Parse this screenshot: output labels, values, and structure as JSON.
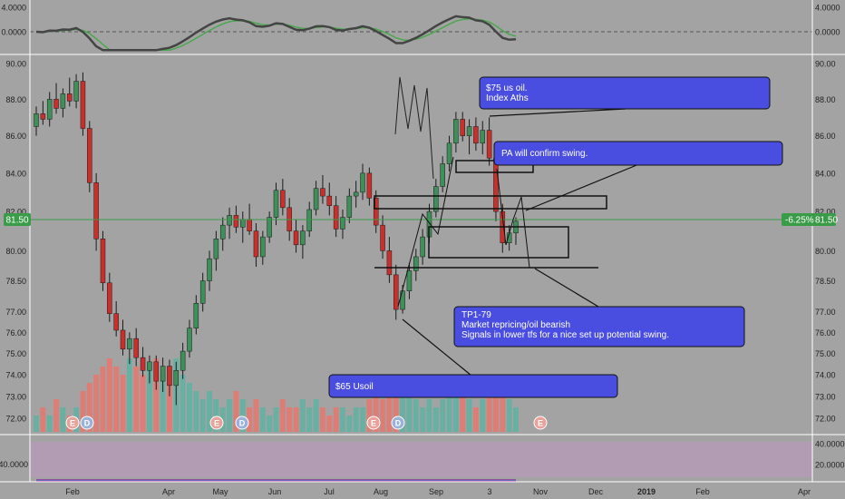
{
  "chart_data": {
    "type": "candlestick",
    "instrument_last_price": "81.50",
    "price_change_badge": "-6.25%",
    "price_axis": {
      "ticks": [
        "90.00",
        "88.00",
        "86.00",
        "84.00",
        "82.00",
        "80.00",
        "78.50",
        "77.00",
        "76.00",
        "75.00",
        "74.00",
        "73.00",
        "72.00"
      ],
      "values": [
        90,
        88,
        86,
        84,
        82,
        80,
        78.5,
        77,
        76,
        75,
        74,
        73,
        72
      ],
      "log_scale": true
    },
    "time_axis": {
      "labels": [
        "Feb",
        "Apr",
        "May",
        "Jun",
        "Jul",
        "Aug",
        "Sep",
        "3",
        "Nov",
        "Dec",
        "2019",
        "Feb",
        "Apr"
      ]
    },
    "top_oscillator": {
      "ticks": [
        "4.0000",
        "0.0000"
      ],
      "values": [
        4,
        0
      ],
      "ylim": [
        -3,
        5
      ]
    },
    "bottom_oscillator": {
      "ticks": [
        "40.0000",
        "20.0000"
      ],
      "left_label": "40.0000",
      "values": [
        40,
        20
      ],
      "ylim": [
        5,
        48
      ]
    },
    "event_markers": [
      "E",
      "D",
      "E",
      "D",
      "E",
      "D",
      "E"
    ],
    "candles": [
      {
        "o": 86.5,
        "h": 87.6,
        "l": 86.0,
        "c": 87.2
      },
      {
        "o": 87.2,
        "h": 87.9,
        "l": 86.6,
        "c": 86.9
      },
      {
        "o": 86.9,
        "h": 88.4,
        "l": 86.5,
        "c": 88.0
      },
      {
        "o": 88.0,
        "h": 88.9,
        "l": 87.2,
        "c": 87.5
      },
      {
        "o": 87.5,
        "h": 88.6,
        "l": 87.0,
        "c": 88.3
      },
      {
        "o": 88.3,
        "h": 89.2,
        "l": 87.6,
        "c": 87.9
      },
      {
        "o": 87.9,
        "h": 89.4,
        "l": 87.5,
        "c": 89.0
      },
      {
        "o": 89.0,
        "h": 89.5,
        "l": 86.0,
        "c": 86.4
      },
      {
        "o": 86.4,
        "h": 86.8,
        "l": 83.0,
        "c": 83.5
      },
      {
        "o": 83.5,
        "h": 84.0,
        "l": 80.0,
        "c": 80.6
      },
      {
        "o": 80.6,
        "h": 81.0,
        "l": 78.0,
        "c": 78.4
      },
      {
        "o": 78.4,
        "h": 78.9,
        "l": 76.5,
        "c": 76.9
      },
      {
        "o": 76.9,
        "h": 77.5,
        "l": 75.8,
        "c": 76.1
      },
      {
        "o": 76.1,
        "h": 76.6,
        "l": 74.9,
        "c": 75.2
      },
      {
        "o": 75.2,
        "h": 76.0,
        "l": 74.5,
        "c": 75.7
      },
      {
        "o": 75.7,
        "h": 76.2,
        "l": 74.4,
        "c": 74.8
      },
      {
        "o": 74.8,
        "h": 75.3,
        "l": 73.9,
        "c": 74.2
      },
      {
        "o": 74.2,
        "h": 74.9,
        "l": 73.6,
        "c": 74.6
      },
      {
        "o": 74.6,
        "h": 74.9,
        "l": 73.3,
        "c": 73.7
      },
      {
        "o": 73.7,
        "h": 74.8,
        "l": 73.2,
        "c": 74.4
      },
      {
        "o": 74.4,
        "h": 74.7,
        "l": 73.0,
        "c": 73.5
      },
      {
        "o": 73.5,
        "h": 74.6,
        "l": 72.6,
        "c": 74.2
      },
      {
        "o": 74.2,
        "h": 75.5,
        "l": 73.8,
        "c": 75.1
      },
      {
        "o": 75.1,
        "h": 76.6,
        "l": 74.8,
        "c": 76.2
      },
      {
        "o": 76.2,
        "h": 77.8,
        "l": 75.9,
        "c": 77.4
      },
      {
        "o": 77.4,
        "h": 78.9,
        "l": 77.0,
        "c": 78.5
      },
      {
        "o": 78.5,
        "h": 80.0,
        "l": 78.0,
        "c": 79.6
      },
      {
        "o": 79.6,
        "h": 81.0,
        "l": 79.0,
        "c": 80.6
      },
      {
        "o": 80.6,
        "h": 81.7,
        "l": 80.0,
        "c": 81.3
      },
      {
        "o": 81.3,
        "h": 82.2,
        "l": 80.6,
        "c": 81.8
      },
      {
        "o": 81.8,
        "h": 82.3,
        "l": 80.9,
        "c": 81.2
      },
      {
        "o": 81.2,
        "h": 82.0,
        "l": 80.4,
        "c": 81.6
      },
      {
        "o": 81.6,
        "h": 82.4,
        "l": 80.8,
        "c": 81.0
      },
      {
        "o": 81.0,
        "h": 81.4,
        "l": 79.2,
        "c": 79.7
      },
      {
        "o": 79.7,
        "h": 81.0,
        "l": 79.3,
        "c": 80.7
      },
      {
        "o": 80.7,
        "h": 82.0,
        "l": 80.4,
        "c": 81.7
      },
      {
        "o": 81.7,
        "h": 83.5,
        "l": 81.3,
        "c": 83.1
      },
      {
        "o": 83.1,
        "h": 83.7,
        "l": 81.8,
        "c": 82.2
      },
      {
        "o": 82.2,
        "h": 82.7,
        "l": 80.5,
        "c": 81.0
      },
      {
        "o": 81.0,
        "h": 81.6,
        "l": 79.9,
        "c": 80.3
      },
      {
        "o": 80.3,
        "h": 81.3,
        "l": 79.6,
        "c": 81.0
      },
      {
        "o": 81.0,
        "h": 82.5,
        "l": 80.7,
        "c": 82.1
      },
      {
        "o": 82.1,
        "h": 83.6,
        "l": 81.8,
        "c": 83.2
      },
      {
        "o": 83.2,
        "h": 83.9,
        "l": 82.4,
        "c": 82.8
      },
      {
        "o": 82.8,
        "h": 83.5,
        "l": 81.8,
        "c": 82.3
      },
      {
        "o": 82.3,
        "h": 82.8,
        "l": 80.7,
        "c": 81.1
      },
      {
        "o": 81.1,
        "h": 82.1,
        "l": 80.6,
        "c": 81.7
      },
      {
        "o": 81.7,
        "h": 83.2,
        "l": 81.4,
        "c": 82.8
      },
      {
        "o": 82.8,
        "h": 83.6,
        "l": 82.2,
        "c": 83.0
      },
      {
        "o": 83.0,
        "h": 84.5,
        "l": 82.6,
        "c": 84.0
      },
      {
        "o": 84.0,
        "h": 84.3,
        "l": 82.3,
        "c": 82.7
      },
      {
        "o": 82.7,
        "h": 83.1,
        "l": 80.9,
        "c": 81.3
      },
      {
        "o": 81.3,
        "h": 81.8,
        "l": 79.6,
        "c": 80.0
      },
      {
        "o": 80.0,
        "h": 80.7,
        "l": 78.4,
        "c": 78.8
      },
      {
        "o": 78.8,
        "h": 79.3,
        "l": 76.6,
        "c": 77.1
      },
      {
        "o": 77.1,
        "h": 78.3,
        "l": 76.9,
        "c": 78.0
      },
      {
        "o": 78.0,
        "h": 79.4,
        "l": 77.6,
        "c": 79.0
      },
      {
        "o": 79.0,
        "h": 80.1,
        "l": 78.5,
        "c": 79.7
      },
      {
        "o": 79.7,
        "h": 81.1,
        "l": 79.3,
        "c": 80.7
      },
      {
        "o": 80.7,
        "h": 82.4,
        "l": 80.4,
        "c": 82.0
      },
      {
        "o": 82.0,
        "h": 83.7,
        "l": 81.7,
        "c": 83.3
      },
      {
        "o": 83.3,
        "h": 84.9,
        "l": 83.0,
        "c": 84.5
      },
      {
        "o": 84.5,
        "h": 86.0,
        "l": 84.1,
        "c": 85.6
      },
      {
        "o": 85.6,
        "h": 87.3,
        "l": 85.1,
        "c": 86.9
      },
      {
        "o": 86.9,
        "h": 87.3,
        "l": 85.7,
        "c": 86.0
      },
      {
        "o": 86.0,
        "h": 86.9,
        "l": 85.0,
        "c": 86.5
      },
      {
        "o": 86.5,
        "h": 87.0,
        "l": 85.2,
        "c": 85.6
      },
      {
        "o": 85.6,
        "h": 86.8,
        "l": 85.0,
        "c": 86.3
      },
      {
        "o": 86.3,
        "h": 87.0,
        "l": 84.4,
        "c": 84.8
      },
      {
        "o": 84.8,
        "h": 85.2,
        "l": 81.5,
        "c": 82.0
      },
      {
        "o": 82.0,
        "h": 82.4,
        "l": 79.9,
        "c": 80.4
      },
      {
        "o": 80.4,
        "h": 81.3,
        "l": 80.0,
        "c": 80.9
      },
      {
        "o": 80.9,
        "h": 81.7,
        "l": 80.3,
        "c": 81.5
      }
    ],
    "volumes": [
      2,
      3,
      2,
      4,
      3,
      2,
      3,
      5,
      6,
      7,
      8,
      9,
      8,
      7,
      9,
      8,
      7,
      8,
      9,
      7,
      6,
      9,
      7,
      6,
      5,
      4,
      5,
      4,
      3,
      4,
      5,
      4,
      3,
      4,
      3,
      2,
      3,
      4,
      3,
      3,
      4,
      3,
      4,
      3,
      2,
      3,
      3,
      2,
      3,
      3,
      4,
      5,
      4,
      6,
      7,
      6,
      5,
      4,
      3,
      4,
      3,
      4,
      5,
      6,
      5,
      4,
      3,
      4,
      5,
      6,
      5,
      4,
      3
    ]
  },
  "annotations": {
    "box_75": {
      "line1": "$75 us oil.",
      "line2": "Index Aths"
    },
    "box_pa": {
      "text": "PA will confirm swing."
    },
    "box_tp": {
      "line1": "TP1-79",
      "line2": "Market repricing/oil bearish",
      "line3": "Signals in lower tfs for a nice set up potential swing."
    },
    "box_65": {
      "text": "$65 Usoil"
    }
  },
  "colors": {
    "background": "#a3a3a3",
    "bull": "#3f8f5a",
    "bear": "#c9302c",
    "volume_bull": "#5fb3a3",
    "volume_bear": "#e8786f",
    "annotation_fill": "#4a4ee0",
    "last_price": "#3a9b48",
    "oscillator_band": "#b79ab8"
  }
}
